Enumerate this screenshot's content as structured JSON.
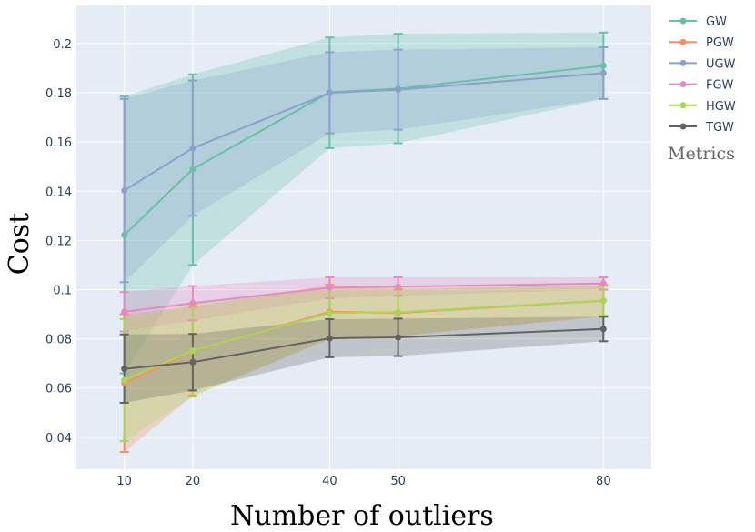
{
  "chart_data": {
    "type": "line",
    "xlabel": "Number of outliers",
    "ylabel": "Cost",
    "x": [
      10,
      20,
      40,
      50,
      80
    ],
    "x_ticks": [
      "10",
      "20",
      "40",
      "50",
      "80"
    ],
    "xlim": [
      3,
      87
    ],
    "ylim": [
      0.027,
      0.2155
    ],
    "y_ticks": [
      "0.04",
      "0.06",
      "0.08",
      "0.1",
      "0.12",
      "0.14",
      "0.16",
      "0.18",
      "0.2"
    ],
    "y_tick_values": [
      0.04,
      0.06,
      0.08,
      0.1,
      0.12,
      0.14,
      0.16,
      0.18,
      0.2
    ],
    "grid": true,
    "legend_title": "Metrics",
    "legend_position": "right",
    "background": "#e5ecf6",
    "series": [
      {
        "name": "GW",
        "color": "#66c2a5",
        "values": [
          0.1222,
          0.149,
          0.1802,
          0.1817,
          0.191
        ],
        "lower": [
          0.066,
          0.11,
          0.1575,
          0.1595,
          0.1775
        ],
        "upper": [
          0.1785,
          0.1875,
          0.2025,
          0.204,
          0.2045
        ]
      },
      {
        "name": "PGW",
        "color": "#fc8d62",
        "values": [
          0.062,
          0.075,
          0.091,
          0.0905,
          0.0955
        ],
        "lower": [
          0.034,
          0.057,
          0.08,
          0.081,
          0.089
        ],
        "upper": [
          0.09,
          0.093,
          0.102,
          0.1,
          0.102
        ]
      },
      {
        "name": "UGW",
        "color": "#8da0cb",
        "values": [
          0.1403,
          0.1575,
          0.18,
          0.1812,
          0.188
        ],
        "lower": [
          0.103,
          0.13,
          0.1635,
          0.165,
          0.1775
        ],
        "upper": [
          0.1775,
          0.185,
          0.1965,
          0.1975,
          0.1985
        ]
      },
      {
        "name": "FGW",
        "color": "#e78ac3",
        "values": [
          0.091,
          0.0945,
          0.1008,
          0.1012,
          0.1025
        ],
        "lower": [
          0.083,
          0.0875,
          0.0965,
          0.0975,
          0.1
        ],
        "upper": [
          0.099,
          0.1015,
          0.105,
          0.105,
          0.105
        ]
      },
      {
        "name": "HGW",
        "color": "#a6d854",
        "values": [
          0.0632,
          0.0752,
          0.0905,
          0.0908,
          0.0955
        ],
        "lower": [
          0.0385,
          0.0565,
          0.08,
          0.081,
          0.0895
        ],
        "upper": [
          0.088,
          0.094,
          0.101,
          0.1005,
          0.1015
        ]
      },
      {
        "name": "TGW",
        "color": "#626262",
        "values": [
          0.0678,
          0.0705,
          0.0802,
          0.0806,
          0.084
        ],
        "lower": [
          0.054,
          0.059,
          0.0725,
          0.073,
          0.079
        ],
        "upper": [
          0.0818,
          0.082,
          0.088,
          0.0882,
          0.089
        ]
      }
    ]
  }
}
